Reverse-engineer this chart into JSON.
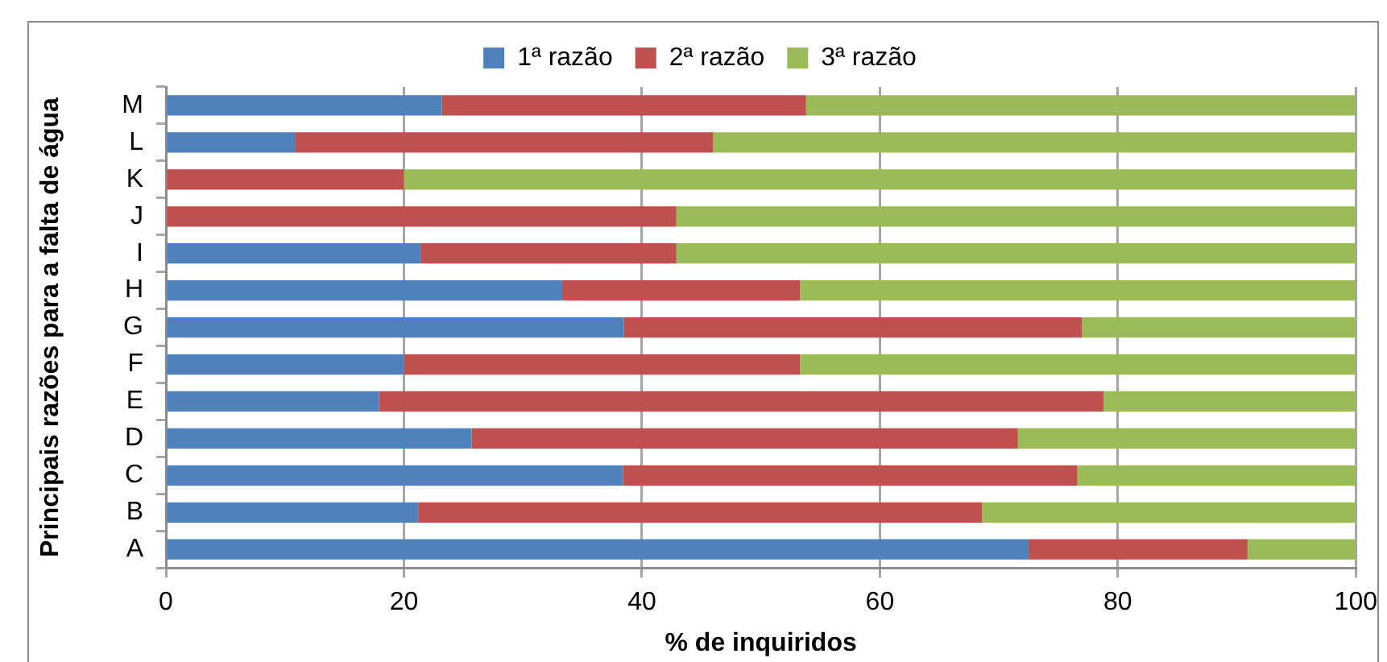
{
  "chart_data": {
    "type": "bar",
    "orientation": "horizontal",
    "stacked": true,
    "xlabel": "% de inquiridos",
    "ylabel": "Principais razões para a falta de água",
    "categories": [
      "M",
      "L",
      "K",
      "J",
      "I",
      "H",
      "G",
      "F",
      "E",
      "D",
      "C",
      "B",
      "A"
    ],
    "series": [
      {
        "name": "1ª razão",
        "color": "#4f81bd",
        "values": [
          23.2,
          10.9,
          0,
          0,
          21.4,
          33.3,
          38.5,
          20.0,
          17.9,
          25.7,
          38.4,
          21.2,
          72.5
        ]
      },
      {
        "name": "2ª razão",
        "color": "#c0504d",
        "values": [
          30.6,
          35.1,
          20.0,
          42.9,
          21.5,
          20.0,
          38.5,
          33.3,
          60.9,
          45.9,
          38.2,
          47.4,
          18.4
        ]
      },
      {
        "name": "3ª razão",
        "color": "#9bbb59",
        "values": [
          46.2,
          54.0,
          80.0,
          57.1,
          57.1,
          46.7,
          23.0,
          46.7,
          21.2,
          28.4,
          23.4,
          31.4,
          9.1
        ]
      }
    ],
    "xlim": [
      0,
      100
    ],
    "xticks": [
      0,
      20,
      40,
      60,
      80,
      100
    ],
    "grid": "x",
    "legend": "top"
  }
}
